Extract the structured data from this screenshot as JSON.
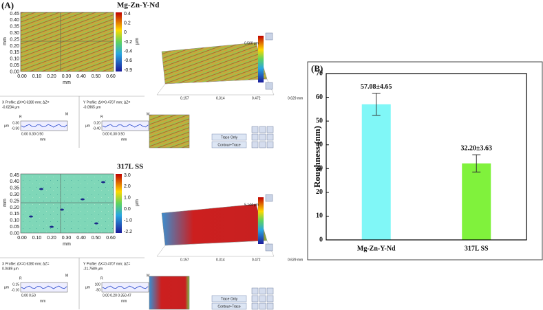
{
  "panel_a": {
    "label": "(A)",
    "samples": [
      {
        "title": "Mg-Zn-Y-Nd",
        "map_yticks": [
          "0.45",
          "0.40",
          "0.35",
          "0.30",
          "0.25",
          "0.20",
          "0.15",
          "0.10",
          "0.05",
          "0.00"
        ],
        "map_xticks": [
          "0.00",
          "0.10",
          "0.20",
          "0.30",
          "0.40",
          "0.50",
          "0.60"
        ],
        "axis_unit": "mm",
        "colorbar_ticks": [
          "0.4",
          "0.2",
          "0",
          "-0.2",
          "-0.4",
          "-0.6",
          "-0.9"
        ],
        "colorbar_unit": "µm",
        "view_scale": "0.500 µm",
        "view_ticks": [
          "0.157",
          "0.314",
          "0.472",
          "0.629 mm"
        ],
        "x_profile": {
          "heading": "X Profile: ΔX=0.6280 mm; ΔZ=",
          "value": "-0.0234 µm",
          "yticks": [
            "0.30",
            "-0.30"
          ],
          "xticks": "0.00 0.30 0.50"
        },
        "y_profile": {
          "heading": "Y Profile: ΔX=0.4707 mm; ΔZ=",
          "value": "-0.0965 µm",
          "yticks": [
            "0.20",
            "-0.40"
          ],
          "xticks": "0.00 0.30 0.50"
        }
      },
      {
        "title": "317L SS",
        "map_yticks": [
          "0.45",
          "0.40",
          "0.35",
          "0.30",
          "0.25",
          "0.20",
          "0.15",
          "0.10",
          "0.05",
          "0.00"
        ],
        "map_xticks": [
          "0.00",
          "0.10",
          "0.20",
          "0.30",
          "0.40",
          "0.50",
          "0.60"
        ],
        "axis_unit": "mm",
        "colorbar_ticks": [
          "3.0",
          "2.0",
          "1.0",
          "0.0",
          "-1.0",
          "-2.2"
        ],
        "colorbar_unit": "µm",
        "view_scale": "5.144 µm",
        "view_ticks": [
          "0.157",
          "0.314",
          "0.472",
          "0.629 mm"
        ],
        "x_profile": {
          "heading": "X Profile: ΔX=0.6280 mm; ΔZ=",
          "value": "0.0489 µm",
          "yticks": [
            "0.15",
            "-0.10"
          ],
          "xticks": "0.00 0.50"
        },
        "y_profile": {
          "heading": "Y Profile: ΔX=0.4707 mm; ΔZ=",
          "value": "-21.7589 µm",
          "yticks": [
            "100",
            "-50"
          ],
          "xticks": "0.00 0.20 0.350.47"
        }
      }
    ],
    "markers": [
      "R",
      "M"
    ],
    "buttons": [
      "Trace Only",
      "Contour+Trace"
    ]
  },
  "chart_data": {
    "type": "bar",
    "panel_label": "(B)",
    "y_label": "Roughness (nm)",
    "categories": [
      "Mg-Zn-Y-Nd",
      "317L SS"
    ],
    "values": [
      57.08,
      32.2
    ],
    "errors": [
      4.65,
      3.63
    ],
    "value_labels": [
      "57.08±4.65",
      "32.20±3.63"
    ],
    "colors": [
      "#80f7f7",
      "#80f23c"
    ],
    "ylim": [
      0,
      70
    ],
    "yticks": [
      0,
      10,
      20,
      30,
      40,
      50,
      60,
      70
    ]
  }
}
